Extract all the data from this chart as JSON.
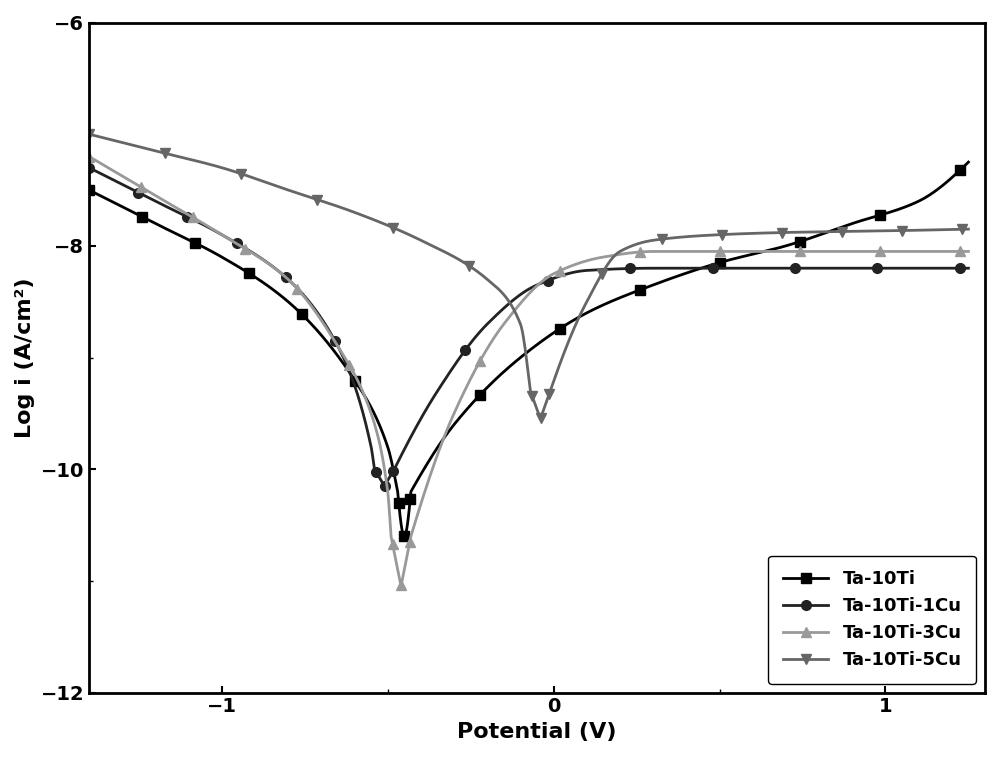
{
  "xlabel": "Potential (V)",
  "ylabel": "Log i (A/cm²)",
  "xlim": [
    -1.4,
    1.3
  ],
  "ylim": [
    -12,
    -6
  ],
  "xticks": [
    -1,
    0,
    1
  ],
  "yticks": [
    -12,
    -10,
    -8,
    -6
  ],
  "series": [
    {
      "label": "Ta-10Ti",
      "color": "#000000",
      "marker": "s",
      "markersize": 7
    },
    {
      "label": "Ta-10Ti-1Cu",
      "color": "#222222",
      "marker": "o",
      "markersize": 7
    },
    {
      "label": "Ta-10Ti-3Cu",
      "color": "#999999",
      "marker": "^",
      "markersize": 7
    },
    {
      "label": "Ta-10Ti-5Cu",
      "color": "#666666",
      "marker": "v",
      "markersize": 7
    }
  ],
  "legend_loc": "lower right",
  "legend_fontsize": 13,
  "axis_fontsize": 16,
  "tick_fontsize": 14,
  "linewidth": 2.0,
  "background_color": "#ffffff"
}
